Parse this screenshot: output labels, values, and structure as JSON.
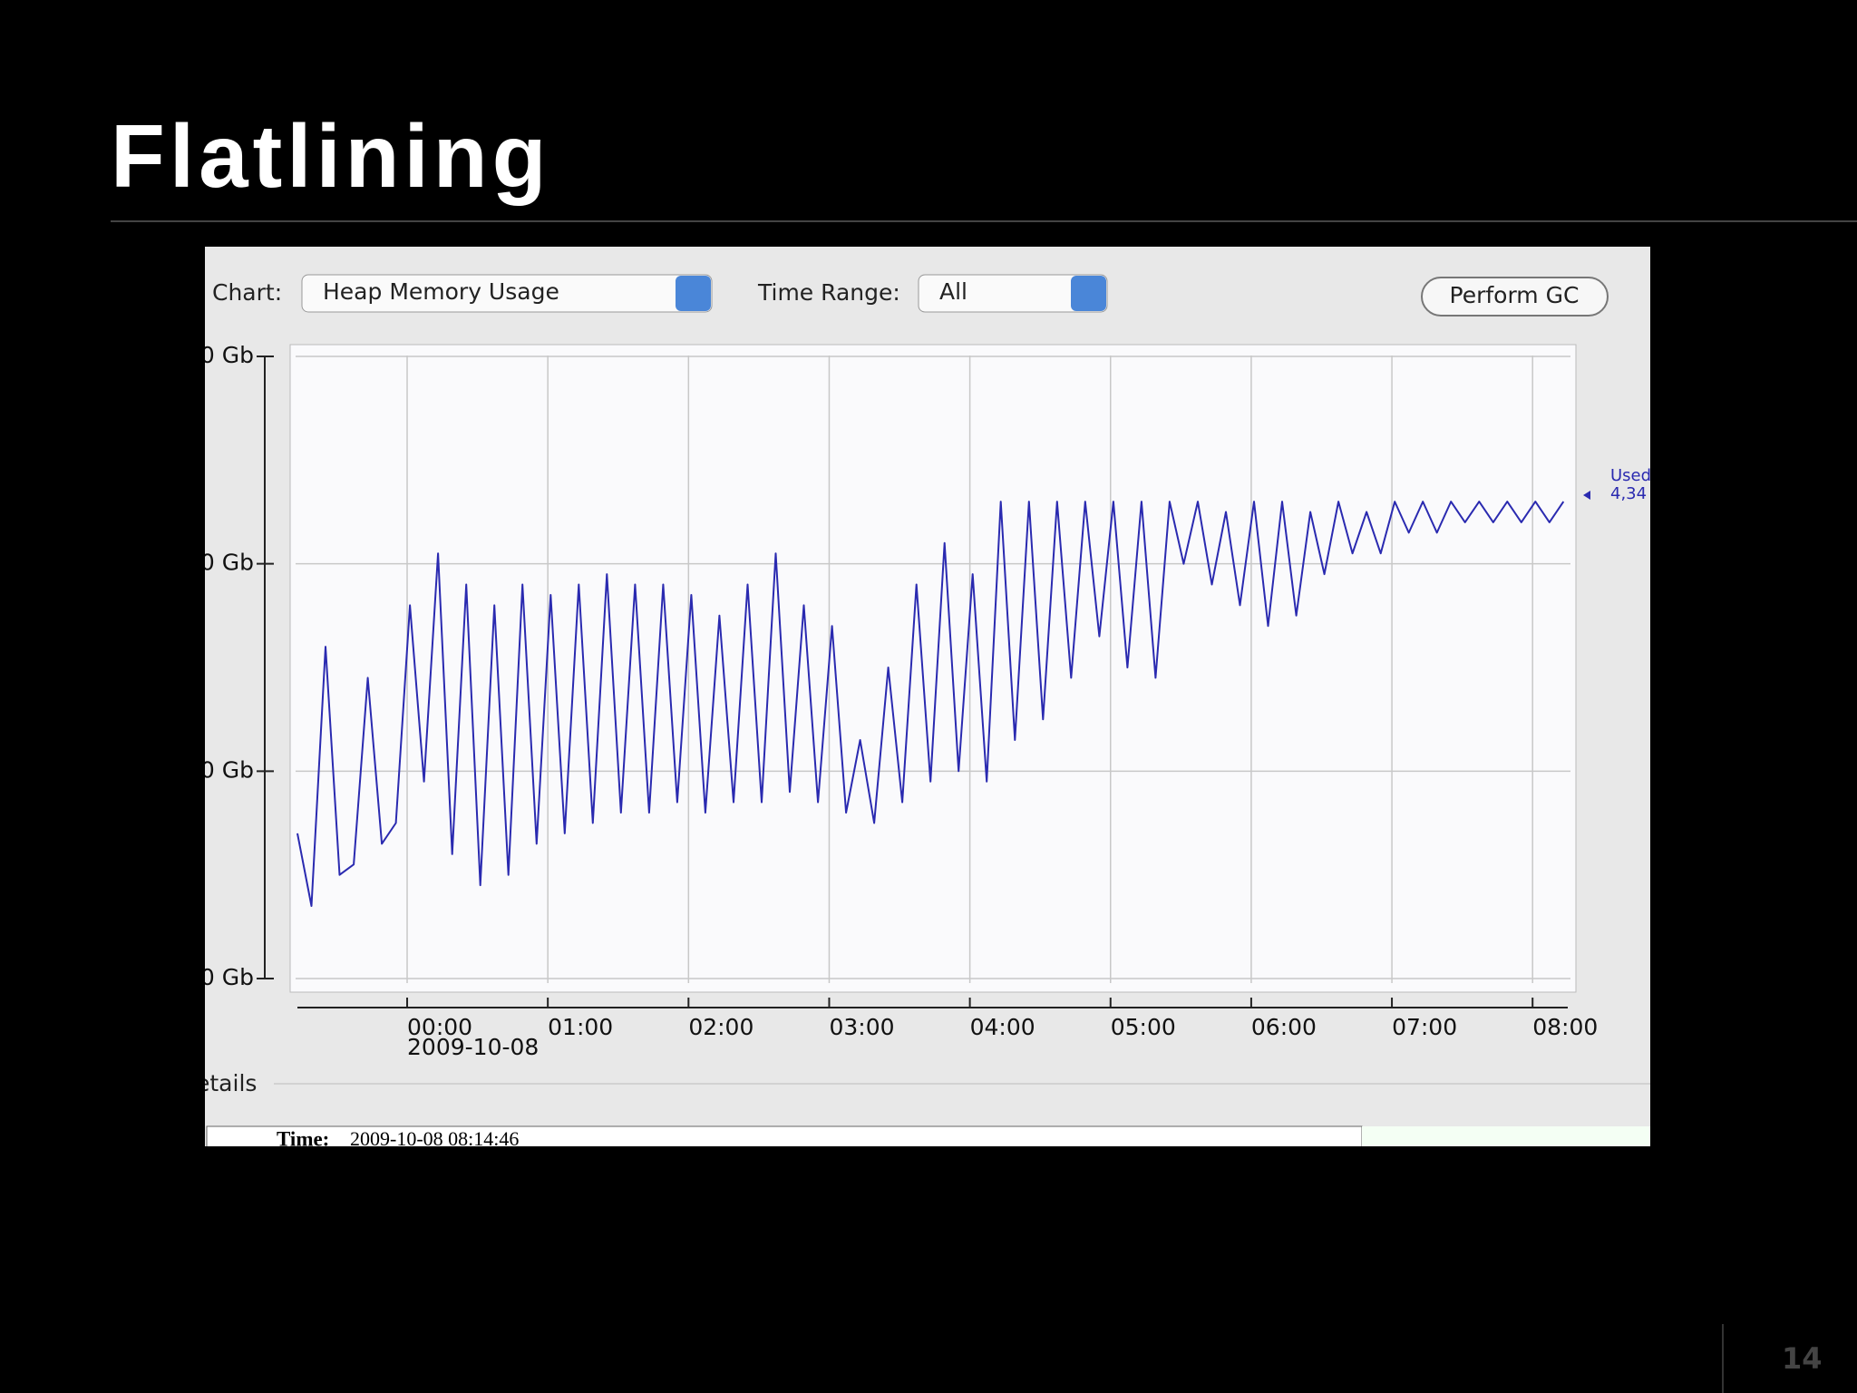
{
  "slide": {
    "title": "Flatlining",
    "page": "14"
  },
  "controls": {
    "chart_label": "Chart:",
    "chart_value": "Heap Memory Usage",
    "range_label": "Time Range:",
    "range_value": "All",
    "button": "Perform GC"
  },
  "details": {
    "heading": "etails",
    "time_label": "Time:",
    "time_value": "2009-10-08 08:14:46"
  },
  "legend_value": "4,34",
  "chart_data": {
    "type": "line",
    "x_date_label": "2009-10-08",
    "x": [
      -0.78,
      -0.68,
      -0.58,
      -0.48,
      -0.38,
      -0.28,
      -0.18,
      -0.08,
      0.02,
      0.12,
      0.22,
      0.32,
      0.42,
      0.52,
      0.62,
      0.72,
      0.82,
      0.92,
      1.02,
      1.12,
      1.22,
      1.32,
      1.42,
      1.52,
      1.62,
      1.72,
      1.82,
      1.92,
      2.02,
      2.12,
      2.22,
      2.32,
      2.42,
      2.52,
      2.62,
      2.72,
      2.82,
      2.92,
      3.02,
      3.12,
      3.22,
      3.32,
      3.42,
      3.52,
      3.62,
      3.72,
      3.82,
      3.92,
      4.02,
      4.12,
      4.22,
      4.32,
      4.42,
      4.52,
      4.62,
      4.72,
      4.82,
      4.92,
      5.02,
      5.12,
      5.22,
      5.32,
      5.42,
      5.52,
      5.62,
      5.72,
      5.82,
      5.92,
      6.02,
      6.12,
      6.22,
      6.32,
      6.42,
      6.52,
      6.62,
      6.72,
      6.82,
      6.92,
      7.02,
      7.12,
      7.22,
      7.32,
      7.42,
      7.52,
      7.62,
      7.72,
      7.82,
      7.92,
      8.02,
      8.12,
      8.22
    ],
    "series": [
      {
        "name": "Used",
        "color": "#2a2ab0",
        "values": [
          1.4,
          0.7,
          3.2,
          1.0,
          1.1,
          2.9,
          1.3,
          1.5,
          3.6,
          1.9,
          4.1,
          1.2,
          3.8,
          0.9,
          3.6,
          1.0,
          3.8,
          1.3,
          3.7,
          1.4,
          3.8,
          1.5,
          3.9,
          1.6,
          3.8,
          1.6,
          3.8,
          1.7,
          3.7,
          1.6,
          3.5,
          1.7,
          3.8,
          1.7,
          4.1,
          1.8,
          3.6,
          1.7,
          3.4,
          1.6,
          2.3,
          1.5,
          3.0,
          1.7,
          3.8,
          1.9,
          4.2,
          2.0,
          3.9,
          1.9,
          4.6,
          2.3,
          4.6,
          2.5,
          4.6,
          2.9,
          4.6,
          3.3,
          4.6,
          3.0,
          4.6,
          2.9,
          4.6,
          4.0,
          4.6,
          3.8,
          4.5,
          3.6,
          4.6,
          3.4,
          4.6,
          3.5,
          4.5,
          3.9,
          4.6,
          4.1,
          4.5,
          4.1,
          4.6,
          4.3,
          4.6,
          4.3,
          4.6,
          4.4,
          4.6,
          4.4,
          4.6,
          4.4,
          4.6,
          4.4,
          4.6
        ]
      }
    ],
    "xlim": [
      -0.78,
      8.25
    ],
    "xticks": [
      {
        "value": 0,
        "label": "00:00"
      },
      {
        "value": 1,
        "label": "01:00"
      },
      {
        "value": 2,
        "label": "02:00"
      },
      {
        "value": 3,
        "label": "03:00"
      },
      {
        "value": 4,
        "label": "04:00"
      },
      {
        "value": 5,
        "label": "05:00"
      },
      {
        "value": 6,
        "label": "06:00"
      },
      {
        "value": 7,
        "label": "07:00"
      },
      {
        "value": 8,
        "label": "08:00"
      }
    ],
    "ylim": [
      0,
      6
    ],
    "yticks": [
      {
        "value": 0,
        "label": "0 Gb"
      },
      {
        "value": 2,
        "label": "0 Gb"
      },
      {
        "value": 4,
        "label": "0 Gb"
      },
      {
        "value": 6,
        "label": "0 Gb"
      }
    ],
    "grid": true
  }
}
